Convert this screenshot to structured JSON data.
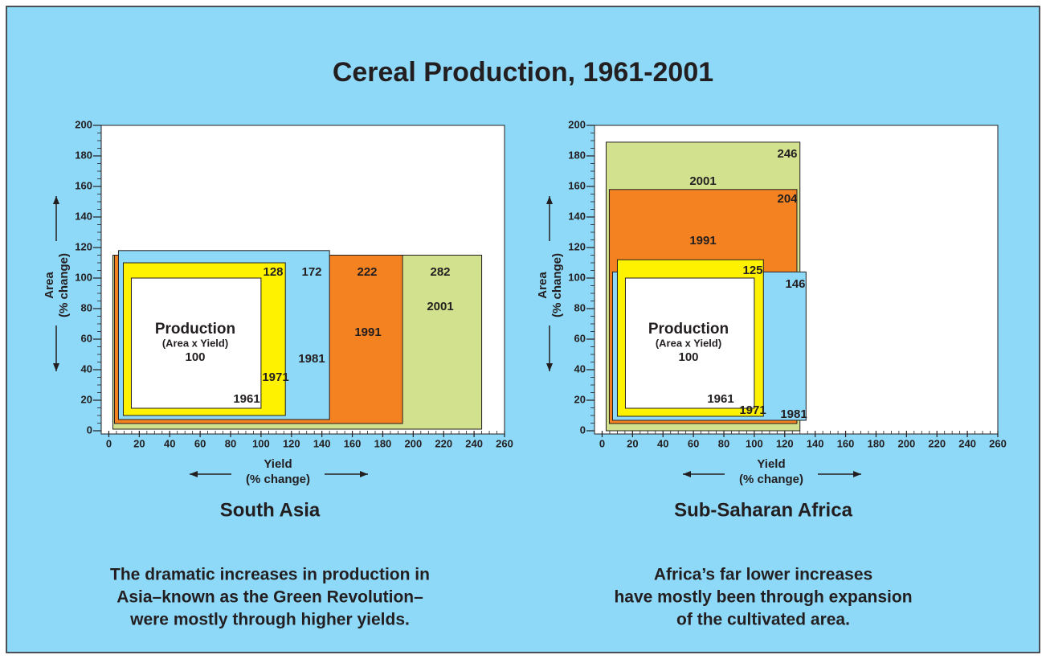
{
  "title": "Cereal Production, 1961-2001",
  "chart_data": [
    {
      "type": "rectangle",
      "title": "South Asia",
      "caption": [
        "The dramatic increases in production in",
        "Asia–known as the Green Revolution–",
        "were mostly through higher yields."
      ],
      "xlabel": [
        "Yield",
        "(% change)"
      ],
      "ylabel": [
        "Area",
        "(% change)"
      ],
      "center_label": [
        "Production",
        "(Area x Yield)"
      ],
      "categories": [
        "1961",
        "1971",
        "1981",
        "1991",
        "2001"
      ],
      "yield": [
        100,
        116,
        145,
        193,
        245
      ],
      "area": [
        100,
        110,
        118,
        115,
        115
      ],
      "production": [
        100,
        128,
        172,
        222,
        282
      ],
      "colors": [
        "#ffffff",
        "#fff200",
        "#8ed8f8",
        "#f58220",
        "#d1e18d"
      ],
      "xlim": [
        -5,
        260
      ],
      "ylim": [
        0,
        200
      ],
      "xticks": [
        0,
        20,
        40,
        60,
        80,
        100,
        120,
        140,
        160,
        180,
        200,
        220,
        240,
        260
      ],
      "yticks": [
        0,
        20,
        40,
        60,
        80,
        100,
        120,
        140,
        160,
        180,
        200
      ]
    },
    {
      "type": "rectangle",
      "title": "Sub-Saharan Africa",
      "caption": [
        "Africa’s far lower increases",
        "have mostly been through expansion",
        "of the cultivated area."
      ],
      "xlabel": [
        "Yield",
        "(% change)"
      ],
      "ylabel": [
        "Area",
        "(% change)"
      ],
      "center_label": [
        "Production",
        "(Area x Yield)"
      ],
      "categories": [
        "1961",
        "1971",
        "1981",
        "1991",
        "2001"
      ],
      "yield": [
        100,
        106,
        134,
        128,
        130
      ],
      "area": [
        100,
        112,
        104,
        158,
        189
      ],
      "production": [
        100,
        125,
        146,
        204,
        246
      ],
      "colors": [
        "#ffffff",
        "#fff200",
        "#8ed8f8",
        "#f58220",
        "#d1e18d"
      ],
      "xlim": [
        -5,
        260
      ],
      "ylim": [
        0,
        200
      ],
      "xticks": [
        0,
        20,
        40,
        60,
        80,
        100,
        120,
        140,
        160,
        180,
        200,
        220,
        240,
        260
      ],
      "yticks": [
        0,
        20,
        40,
        60,
        80,
        100,
        120,
        140,
        160,
        180,
        200
      ]
    }
  ]
}
